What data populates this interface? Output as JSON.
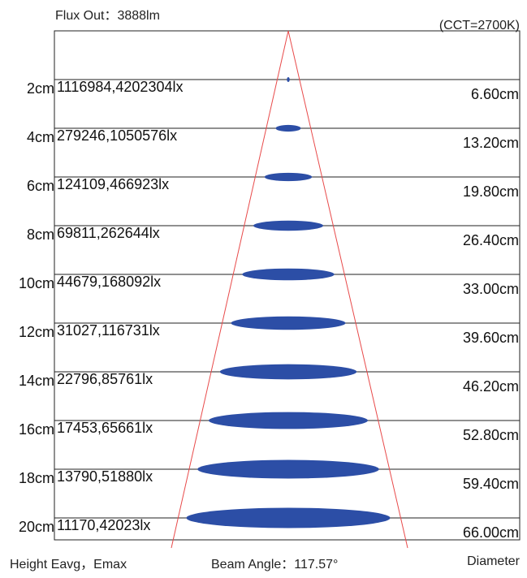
{
  "header": {
    "flux_out": "Flux Out：3888lm",
    "cct": "(CCT=2700K)"
  },
  "footer": {
    "height_label": "Height  Eavg，Emax",
    "beam_angle": "Beam Angle：117.57°",
    "diameter_label": "Diameter"
  },
  "rows": [
    {
      "height": "2cm",
      "illuminance": "1116984,4202304lx",
      "diameter": "6.60cm"
    },
    {
      "height": "4cm",
      "illuminance": "279246,1050576lx",
      "diameter": "13.20cm"
    },
    {
      "height": "6cm",
      "illuminance": "124109,466923lx",
      "diameter": "19.80cm"
    },
    {
      "height": "8cm",
      "illuminance": "69811,262644lx",
      "diameter": "26.40cm"
    },
    {
      "height": "10cm",
      "illuminance": "44679,168092lx",
      "diameter": "33.00cm"
    },
    {
      "height": "12cm",
      "illuminance": "31027,116731lx",
      "diameter": "39.60cm"
    },
    {
      "height": "14cm",
      "illuminance": "22796,85761lx",
      "diameter": "46.20cm"
    },
    {
      "height": "16cm",
      "illuminance": "17453,65661lx",
      "diameter": "52.80cm"
    },
    {
      "height": "18cm",
      "illuminance": "13790,51880lx",
      "diameter": "59.40cm"
    },
    {
      "height": "20cm",
      "illuminance": "11170,42023lx",
      "diameter": "66.00cm"
    }
  ],
  "colors": {
    "cone": "#e84a4a",
    "spot": "#2c4ea6",
    "grid": "#222222"
  }
}
